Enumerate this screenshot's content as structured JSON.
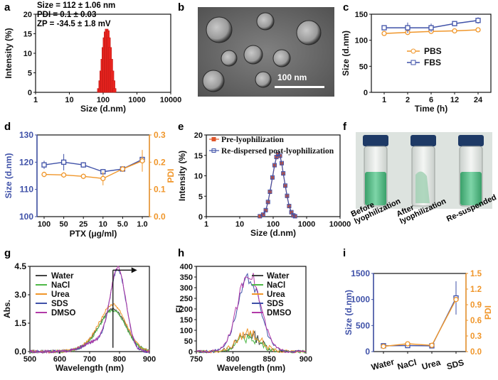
{
  "colors": {
    "red": "#e8241f",
    "blue": "#3f51a8",
    "orange": "#f0962a",
    "purple": "#b23aa8",
    "teal": "#2bc8b6",
    "green": "#4fb848",
    "black": "#333333"
  },
  "panels": {
    "a": {
      "label": "a",
      "annotation": [
        "Size = 112 ± 1.06 nm",
        "PDI = 0.1 ± 0.03",
        "ZP = -34.5 ± 1.8 mV"
      ]
    },
    "b": {
      "label": "b",
      "scalebar": "100 nm"
    },
    "c": {
      "label": "c"
    },
    "d": {
      "label": "d"
    },
    "e": {
      "label": "e"
    },
    "f": {
      "label": "f",
      "captions": [
        "Before lyophilization",
        "After lyophilization",
        "Re-suspended"
      ]
    },
    "g": {
      "label": "g"
    },
    "h": {
      "label": "h"
    },
    "i": {
      "label": "i"
    }
  },
  "chart_data": [
    {
      "id": "a",
      "type": "bar",
      "title": "",
      "xlabel": "Size (d.nm)",
      "ylabel": "Intensity (%)",
      "xscale": "log",
      "xlim": [
        1,
        10000
      ],
      "ylim": [
        0,
        20
      ],
      "xticks": [
        "1",
        "10",
        "100",
        "1000",
        "10000"
      ],
      "yticks": [
        "0",
        "5",
        "10",
        "15",
        "20"
      ],
      "x": [
        75,
        82,
        88,
        95,
        102,
        110,
        118,
        127,
        137,
        148,
        160,
        173,
        187,
        202,
        218
      ],
      "values": [
        1,
        3,
        5.5,
        8.5,
        11.5,
        14,
        15.5,
        16.2,
        15.8,
        14,
        11.5,
        8.5,
        5.5,
        3,
        1
      ]
    },
    {
      "id": "c",
      "type": "line",
      "xlabel": "Time (h)",
      "ylabel": "Size (d.nm)",
      "ylim": [
        0,
        150
      ],
      "yticks": [
        "0",
        "50",
        "100",
        "150"
      ],
      "categories": [
        "1",
        "2",
        "6",
        "12",
        "24"
      ],
      "series": [
        {
          "name": "PBS",
          "values": [
            113,
            115,
            117,
            118,
            120
          ],
          "errors": [
            2,
            2,
            2,
            2,
            2
          ]
        },
        {
          "name": "FBS",
          "values": [
            124,
            124,
            124,
            132,
            138
          ],
          "errors": [
            3,
            10,
            8,
            5,
            6
          ]
        }
      ]
    },
    {
      "id": "d",
      "type": "line",
      "xlabel": "PTX (μg/ml)",
      "ylabel": "Size (d.nm)",
      "y2label": "PDI",
      "ylim": [
        100,
        130
      ],
      "y2lim": [
        0,
        0.3
      ],
      "yticks": [
        "100",
        "110",
        "120",
        "130"
      ],
      "y2ticks": [
        "0.0",
        "0.1",
        "0.2",
        "0.3"
      ],
      "categories": [
        "100",
        "50",
        "25",
        "10",
        "5.0",
        "1.0"
      ],
      "series": [
        {
          "name": "Size",
          "axis": "left",
          "values": [
            119,
            120,
            119,
            116.5,
            117.5,
            121
          ],
          "errors": [
            1.5,
            3,
            1,
            1,
            1,
            3
          ]
        },
        {
          "name": "PDI",
          "axis": "right",
          "values": [
            0.155,
            0.153,
            0.148,
            0.14,
            0.175,
            0.205
          ],
          "errors": [
            0.01,
            0.01,
            0.01,
            0.025,
            0.01,
            0.04
          ]
        }
      ]
    },
    {
      "id": "e",
      "type": "line",
      "xlabel": "Size (d.nm)",
      "ylabel": "Intensity (%)",
      "xscale": "log",
      "xlim": [
        1,
        10000
      ],
      "ylim": [
        0,
        20
      ],
      "xticks": [
        "1",
        "10",
        "100",
        "1000",
        "10000"
      ],
      "yticks": [
        "0",
        "5",
        "10",
        "15",
        "20"
      ],
      "x": [
        40,
        50,
        60,
        70,
        80,
        95,
        110,
        125,
        140,
        160,
        180,
        200,
        230,
        260,
        300,
        350,
        400,
        450
      ],
      "series": [
        {
          "name": "Pre-lyophilization",
          "values": [
            0.1,
            0.5,
            1.5,
            3.5,
            6,
            9.5,
            12.5,
            14.5,
            15.2,
            14.8,
            13,
            10.5,
            7.5,
            5,
            2.5,
            1,
            0.3,
            0.1
          ]
        },
        {
          "name": "Re-dispersed post-lyophilization",
          "values": [
            0.1,
            0.5,
            1.6,
            3.6,
            6.1,
            9.6,
            12.6,
            14.6,
            15.3,
            14.9,
            13.1,
            10.6,
            7.6,
            5.1,
            2.6,
            1.1,
            0.3,
            0.1
          ]
        }
      ]
    },
    {
      "id": "g",
      "type": "line",
      "xlabel": "Wavelength (nm)",
      "ylabel": "Abs.",
      "xlim": [
        500,
        900
      ],
      "ylim": [
        0,
        4.5
      ],
      "xticks": [
        "500",
        "600",
        "700",
        "800",
        "900"
      ],
      "yticks": [
        "0.0",
        "1.5",
        "3.0",
        "4.5"
      ],
      "series": [
        {
          "name": "Water",
          "peak": 2.2
        },
        {
          "name": "NaCl",
          "peak": 2.1
        },
        {
          "name": "Urea",
          "peak": 2.4
        },
        {
          "name": "SDS",
          "peak": 4.2
        },
        {
          "name": "DMSO",
          "peak": 4.3
        }
      ]
    },
    {
      "id": "h",
      "type": "line",
      "xlabel": "Wavelength (nm)",
      "ylabel": "FI",
      "xlim": [
        750,
        900
      ],
      "ylim": [
        0,
        400
      ],
      "xticks": [
        "750",
        "800",
        "850",
        "900"
      ],
      "yticks": [
        "0",
        "50",
        "100",
        "150",
        "200",
        "250",
        "300",
        "350",
        "400"
      ],
      "series": [
        {
          "name": "Water",
          "peak": 80
        },
        {
          "name": "NaCl",
          "peak": 70
        },
        {
          "name": "Urea",
          "peak": 90
        },
        {
          "name": "SDS",
          "peak": 340
        },
        {
          "name": "DMSO",
          "peak": 370
        }
      ]
    },
    {
      "id": "i",
      "type": "line",
      "xlabel": "",
      "ylabel": "Size (d.nm)",
      "y2label": "PDI",
      "ylim": [
        0,
        1500
      ],
      "y2lim": [
        0,
        1.5
      ],
      "yticks": [
        "0",
        "500",
        "1000",
        "1500"
      ],
      "y2ticks": [
        "0.0",
        "0.3",
        "0.6",
        "0.9",
        "1.2",
        "1.5"
      ],
      "categories": [
        "Water",
        "NaCl",
        "Urea",
        "SDS"
      ],
      "series": [
        {
          "name": "Size",
          "axis": "left",
          "values": [
            112,
            115,
            110,
            1030
          ],
          "errors": [
            5,
            5,
            5,
            320
          ]
        },
        {
          "name": "PDI",
          "axis": "right",
          "values": [
            0.1,
            0.15,
            0.12,
            1.0
          ],
          "errors": [
            0.01,
            0.02,
            0.01,
            0.05
          ]
        }
      ]
    }
  ]
}
